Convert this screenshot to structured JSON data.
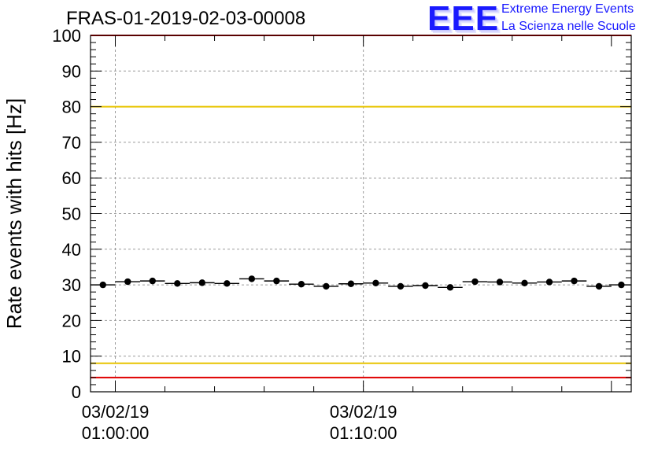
{
  "header": {
    "title": "FRAS-01-2019-02-03-00008",
    "logo_mark": "EEE",
    "logo_line1": "Extreme Energy Events",
    "logo_line2": "La Scienza nelle Scuole"
  },
  "chart_data": {
    "type": "scatter",
    "title": "FRAS-01-2019-02-03-00008",
    "xlabel": "",
    "ylabel": "Rate events with hits [Hz]",
    "ylim": [
      0,
      100
    ],
    "yticks": [
      0,
      10,
      20,
      30,
      40,
      50,
      60,
      70,
      80,
      90,
      100
    ],
    "xlim_minutes_after_0050": [
      -1.0,
      20.8
    ],
    "xtick_labels": [
      {
        "minutes_after_0050": 0,
        "date": "03/02/19",
        "time": "01:00:00"
      },
      {
        "minutes_after_0050": 10,
        "date": "03/02/19",
        "time": "01:10:00"
      }
    ],
    "bin_width_minutes": 1.0,
    "grid": true,
    "series": [
      {
        "x_minutes_after_0050": [
          -0.5,
          0.5,
          1.5,
          2.5,
          3.5,
          4.5,
          5.5,
          6.5,
          7.5,
          8.5,
          9.5,
          10.5,
          11.5,
          12.5,
          13.5,
          14.5,
          15.5,
          16.5,
          17.5,
          18.5,
          19.5,
          20.4
        ],
        "values": [
          30.0,
          30.9,
          31.1,
          30.4,
          30.6,
          30.4,
          31.7,
          31.1,
          30.2,
          29.6,
          30.3,
          30.5,
          29.6,
          29.8,
          29.3,
          30.9,
          30.8,
          30.5,
          30.8,
          31.1,
          29.6,
          30.0
        ],
        "color": "#000000"
      }
    ],
    "reference_lines": [
      {
        "y": 80,
        "color": "#e8c400"
      },
      {
        "y": 8,
        "color": "#e8c400"
      },
      {
        "y": 100,
        "color": "#e00000"
      },
      {
        "y": 4,
        "color": "#e00000"
      }
    ]
  }
}
